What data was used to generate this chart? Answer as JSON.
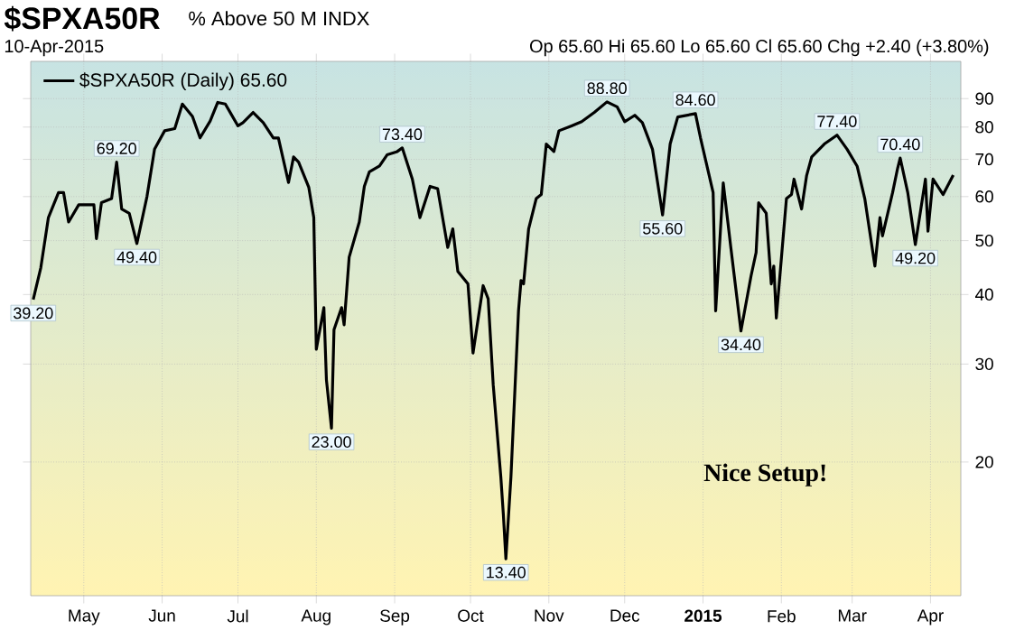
{
  "chart_data": {
    "type": "line",
    "title": "$SPXA50R",
    "subtitle": "% Above 50 M INDX",
    "annotations": [
      "10-Apr-2015",
      "Op 65.60  Hi 65.60  Lo 65.60  Cl 65.60  Chg +2.40 (+3.80%)",
      "Nice Setup!"
    ],
    "x": [
      "2014-04-11",
      "2014-04-14",
      "2014-04-17",
      "2014-04-21",
      "2014-04-23",
      "2014-04-25",
      "2014-04-29",
      "2014-05-05",
      "2014-05-06",
      "2014-05-08",
      "2014-05-12",
      "2014-05-14",
      "2014-05-16",
      "2014-05-19",
      "2014-05-22",
      "2014-05-26",
      "2014-05-29",
      "2014-06-02",
      "2014-06-06",
      "2014-06-09",
      "2014-06-13",
      "2014-06-16",
      "2014-06-20",
      "2014-06-23",
      "2014-06-26",
      "2014-07-01",
      "2014-07-03",
      "2014-07-07",
      "2014-07-11",
      "2014-07-15",
      "2014-07-17",
      "2014-07-21",
      "2014-07-23",
      "2014-07-25",
      "2014-07-29",
      "2014-07-31",
      "2014-08-01",
      "2014-08-04",
      "2014-08-05",
      "2014-08-07",
      "2014-08-08",
      "2014-08-11",
      "2014-08-12",
      "2014-08-14",
      "2014-08-18",
      "2014-08-20",
      "2014-08-22",
      "2014-08-26",
      "2014-08-29",
      "2014-09-02",
      "2014-09-04",
      "2014-09-08",
      "2014-09-11",
      "2014-09-15",
      "2014-09-18",
      "2014-09-22",
      "2014-09-24",
      "2014-09-26",
      "2014-09-30",
      "2014-10-02",
      "2014-10-06",
      "2014-10-08",
      "2014-10-10",
      "2014-10-13",
      "2014-10-14",
      "2014-10-15",
      "2014-10-17",
      "2014-10-20",
      "2014-10-21",
      "2014-10-22",
      "2014-10-24",
      "2014-10-27",
      "2014-10-29",
      "2014-10-31",
      "2014-11-03",
      "2014-11-05",
      "2014-11-10",
      "2014-11-14",
      "2014-11-19",
      "2014-11-24",
      "2014-11-28",
      "2014-12-01",
      "2014-12-05",
      "2014-12-08",
      "2014-12-12",
      "2014-12-16",
      "2014-12-19",
      "2014-12-22",
      "2014-12-29",
      "2014-12-31",
      "2015-01-05",
      "2015-01-06",
      "2015-01-09",
      "2015-01-12",
      "2015-01-16",
      "2015-01-20",
      "2015-01-22",
      "2015-01-23",
      "2015-01-26",
      "2015-01-28",
      "2015-01-29",
      "2015-01-30",
      "2015-02-03",
      "2015-02-05",
      "2015-02-06",
      "2015-02-09",
      "2015-02-11",
      "2015-02-13",
      "2015-02-18",
      "2015-02-23",
      "2015-02-27",
      "2015-03-03",
      "2015-03-06",
      "2015-03-10",
      "2015-03-12",
      "2015-03-13",
      "2015-03-17",
      "2015-03-19",
      "2015-03-20",
      "2015-03-23",
      "2015-03-26",
      "2015-03-30",
      "2015-03-31",
      "2015-04-02",
      "2015-04-06",
      "2015-04-10"
    ],
    "series": [
      {
        "name": "$SPXA50R (Daily) 65.60",
        "color": "#000000",
        "values": [
          39.2,
          44.7,
          55,
          61,
          61,
          54,
          58,
          58,
          50.4,
          58.5,
          59.5,
          69.2,
          57,
          56,
          49.4,
          60,
          73,
          78.8,
          79.5,
          88,
          83.6,
          76.5,
          82,
          88.6,
          88,
          80.4,
          81.5,
          85,
          81.5,
          76.5,
          76.5,
          63.6,
          70.7,
          69.2,
          62.4,
          55,
          31.9,
          37.9,
          28.1,
          23,
          34.6,
          37.9,
          35.3,
          46.7,
          54,
          62.6,
          66.5,
          68.1,
          71.3,
          72.3,
          73.4,
          64.5,
          55,
          62.6,
          62,
          48.6,
          52.5,
          44,
          41.8,
          31.4,
          41.5,
          39.3,
          27.5,
          18.8,
          16.1,
          13.4,
          18.8,
          37.4,
          42.4,
          41.8,
          52.5,
          59.5,
          60.5,
          74.6,
          72.3,
          78.8,
          80.4,
          81.8,
          85,
          88.8,
          87,
          81.8,
          84,
          81.5,
          73,
          55.6,
          74.6,
          83.4,
          84.6,
          76.5,
          61,
          37.4,
          63.5,
          48.6,
          34.4,
          43.2,
          47.6,
          58.5,
          56,
          41.8,
          45,
          36.3,
          59.5,
          60.5,
          64.5,
          57,
          65.5,
          70.7,
          74.6,
          77.4,
          73,
          68,
          59.5,
          45,
          55,
          51,
          61,
          67.5,
          70.4,
          61,
          49.2,
          64.5,
          52,
          64.5,
          60.5,
          65.6
        ],
        "value_labels": [
          "39.20",
          null,
          null,
          null,
          null,
          null,
          null,
          null,
          null,
          null,
          null,
          "69.20",
          null,
          null,
          "49.40",
          null,
          null,
          null,
          null,
          null,
          null,
          null,
          null,
          null,
          null,
          null,
          null,
          null,
          null,
          null,
          null,
          null,
          null,
          null,
          null,
          null,
          null,
          null,
          null,
          "23.00",
          null,
          null,
          null,
          null,
          null,
          null,
          null,
          null,
          null,
          null,
          "73.40",
          null,
          null,
          null,
          null,
          null,
          null,
          null,
          null,
          null,
          null,
          null,
          null,
          null,
          null,
          "13.40",
          null,
          null,
          null,
          null,
          null,
          null,
          null,
          null,
          null,
          null,
          null,
          null,
          null,
          "88.80",
          null,
          null,
          null,
          null,
          null,
          "55.60",
          null,
          null,
          "84.60",
          null,
          null,
          null,
          null,
          null,
          "34.40",
          null,
          null,
          null,
          null,
          null,
          null,
          null,
          null,
          null,
          null,
          null,
          null,
          null,
          null,
          "77.40",
          null,
          null,
          null,
          null,
          null,
          null,
          null,
          null,
          "70.40",
          null,
          "49.20",
          null,
          null,
          null,
          null,
          null
        ]
      }
    ],
    "xlim": [
      "2014-04-10",
      "2015-04-13"
    ],
    "xticks": [
      {
        "value": "2014-05-01",
        "label": "May"
      },
      {
        "value": "2014-06-01",
        "label": "Jun"
      },
      {
        "value": "2014-07-01",
        "label": "Jul"
      },
      {
        "value": "2014-08-01",
        "label": "Aug"
      },
      {
        "value": "2014-09-01",
        "label": "Sep"
      },
      {
        "value": "2014-10-01",
        "label": "Oct"
      },
      {
        "value": "2014-11-01",
        "label": "Nov"
      },
      {
        "value": "2014-12-01",
        "label": "Dec"
      },
      {
        "value": "2015-01-01",
        "label": "2015"
      },
      {
        "value": "2015-02-01",
        "label": "Feb"
      },
      {
        "value": "2015-03-01",
        "label": "Mar"
      },
      {
        "value": "2015-04-01",
        "label": "Apr"
      }
    ],
    "ylim": [
      11.5,
      105
    ],
    "yticks": [
      20,
      30,
      40,
      50,
      60,
      70,
      80,
      90
    ],
    "log": "y",
    "grid": true,
    "legend": "top left",
    "marker": "none",
    "line_style": "solid"
  }
}
